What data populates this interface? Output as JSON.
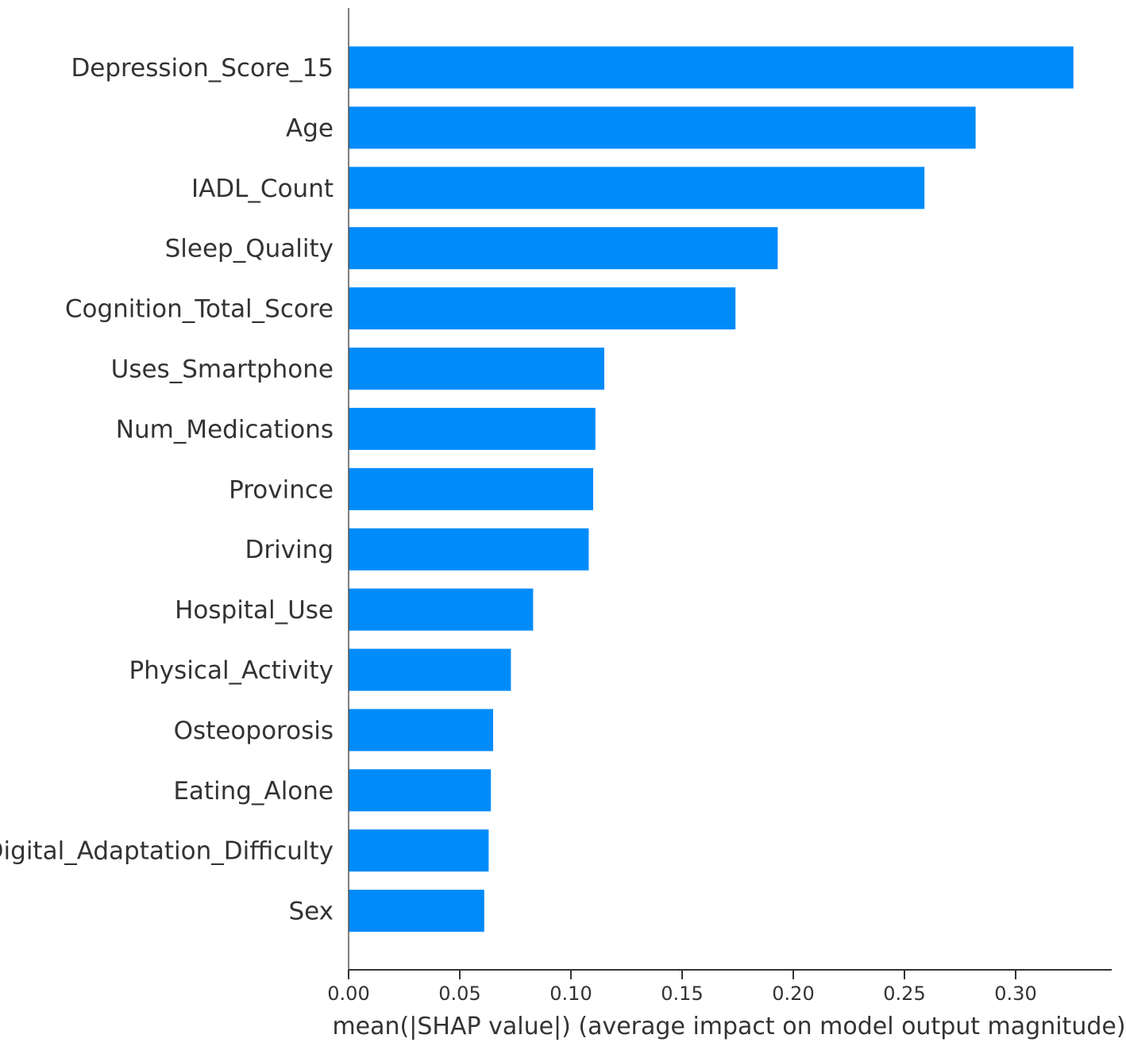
{
  "chart_data": {
    "type": "bar",
    "orientation": "horizontal",
    "categories": [
      "Depression_Score_15",
      "Age",
      "IADL_Count",
      "Sleep_Quality",
      "Cognition_Total_Score",
      "Uses_Smartphone",
      "Num_Medications",
      "Province",
      "Driving",
      "Hospital_Use",
      "Physical_Activity",
      "Osteoporosis",
      "Eating_Alone",
      "Digital_Adaptation_Difficulty",
      "Sex"
    ],
    "values": [
      0.326,
      0.282,
      0.259,
      0.193,
      0.174,
      0.115,
      0.111,
      0.11,
      0.108,
      0.083,
      0.073,
      0.065,
      0.064,
      0.063,
      0.061
    ],
    "xlabel": "mean(|SHAP value|) (average impact on model output magnitude)",
    "ylabel": "",
    "xticks": [
      "0.00",
      "0.05",
      "0.10",
      "0.15",
      "0.20",
      "0.25",
      "0.30"
    ],
    "xlim": [
      0,
      0.343
    ],
    "bar_color": "#008bfb",
    "grid": false
  }
}
